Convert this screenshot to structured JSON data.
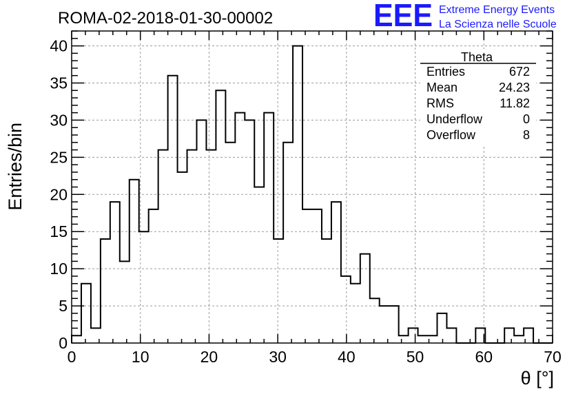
{
  "title": "ROMA-02-2018-01-30-00002",
  "logo": {
    "mark": "EEE",
    "line1": "Extreme Energy Events",
    "line2": "La Scienza nelle Scuole",
    "color": "#1a1aff"
  },
  "stats": {
    "name": "Theta",
    "rows": [
      {
        "label": "Entries",
        "value": "672"
      },
      {
        "label": "Mean",
        "value": "24.23"
      },
      {
        "label": "RMS",
        "value": "11.82"
      },
      {
        "label": "Underflow",
        "value": "0"
      },
      {
        "label": "Overflow",
        "value": "8"
      }
    ]
  },
  "chart_data": {
    "type": "bar",
    "style": "step-histogram",
    "title": "ROMA-02-2018-01-30-00002",
    "xlabel": "θ [°]",
    "ylabel": "Entries/bin",
    "xlim": [
      0,
      70
    ],
    "ylim": [
      0,
      42
    ],
    "bin_width": 1.4,
    "xticks": [
      0,
      10,
      20,
      30,
      40,
      50,
      60,
      70
    ],
    "yticks": [
      0,
      5,
      10,
      15,
      20,
      25,
      30,
      35,
      40
    ],
    "grid": true,
    "values": [
      1,
      8,
      2,
      14,
      19,
      11,
      22,
      15,
      18,
      26,
      36,
      23,
      26,
      30,
      26,
      34,
      27,
      31,
      30,
      21,
      31,
      14,
      27,
      40,
      18,
      18,
      14,
      19,
      9,
      8,
      12,
      6,
      5,
      5,
      1,
      2,
      1,
      1,
      4,
      2,
      0,
      0,
      2,
      0,
      0,
      2,
      1,
      2,
      0,
      0
    ]
  }
}
